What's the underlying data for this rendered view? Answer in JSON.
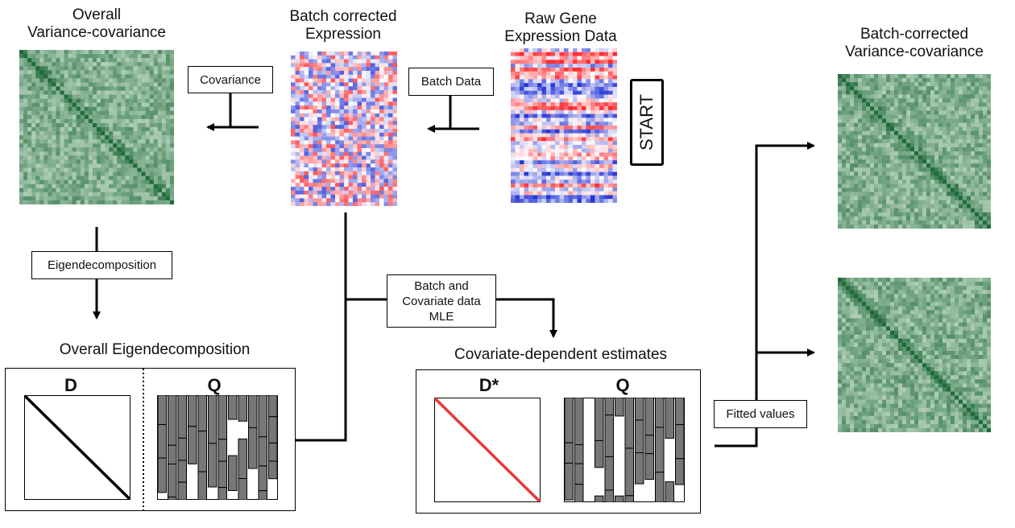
{
  "titles": {
    "overall_vc": "Overall\nVariance-covariance",
    "batch_expr": "Batch corrected\nExpression",
    "raw": "Raw Gene\nExpression Data",
    "batch_vc": "Batch-corrected\nVariance-covariance",
    "overall_eigen": "Overall Eigendecomposition",
    "cov_estimates": "Covariate-dependent estimates"
  },
  "boxes": {
    "covariance": "Covariance",
    "batch_data": "Batch Data",
    "eigendecomposition": "Eigendecomposition",
    "batch_cov_mle": "Batch and\nCovariate data\nMLE",
    "fitted_values": "Fitted values"
  },
  "start_label": "START",
  "matrix_labels": {
    "d": "D",
    "q_left": "Q",
    "d_star": "D*",
    "q_right": "Q"
  },
  "colors": {
    "green_dark": "#1d6b38",
    "green_light": "#e3f2e4",
    "heat_red": "#e8262a",
    "heat_blue": "#2f3fd8",
    "diag_black": "#000000",
    "diag_red": "#e8383a",
    "q_gray": "#777777"
  }
}
